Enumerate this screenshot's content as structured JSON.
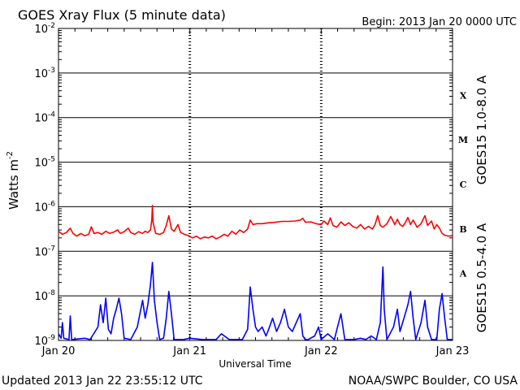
{
  "chart_data": {
    "type": "line",
    "title": "GOES Xray Flux (5 minute data)",
    "begin_label": "Begin:  2013 Jan 20 0000 UTC",
    "xlabel": "Universal Time",
    "ylabel": "Watts m",
    "ylabel_sup": "-2",
    "y_scale": "log",
    "ylim": [
      1e-09,
      0.01
    ],
    "xlim_days": [
      0,
      3
    ],
    "x_ticks": [
      {
        "day": 0,
        "label": "Jan 20"
      },
      {
        "day": 1,
        "label": "Jan 21"
      },
      {
        "day": 2,
        "label": "Jan 22"
      },
      {
        "day": 3,
        "label": "Jan 23"
      }
    ],
    "y_ticks": [
      {
        "exp": -2,
        "base": "10",
        "sup": "-2"
      },
      {
        "exp": -3,
        "base": "10",
        "sup": "-3"
      },
      {
        "exp": -4,
        "base": "10",
        "sup": "-4"
      },
      {
        "exp": -5,
        "base": "10",
        "sup": "-5"
      },
      {
        "exp": -6,
        "base": "10",
        "sup": "-6"
      },
      {
        "exp": -7,
        "base": "10",
        "sup": "-7"
      },
      {
        "exp": -8,
        "base": "10",
        "sup": "-8"
      },
      {
        "exp": -9,
        "base": "10",
        "sup": "-9"
      }
    ],
    "flare_classes": [
      {
        "label": "X",
        "exp": -3.5
      },
      {
        "label": "M",
        "exp": -4.5
      },
      {
        "label": "C",
        "exp": -5.5
      },
      {
        "label": "B",
        "exp": -6.5
      },
      {
        "label": "A",
        "exp": -7.5
      }
    ],
    "grid": true,
    "series": [
      {
        "name": "GOES15 1.0-8.0 A",
        "color": "#ff0000",
        "points": [
          [
            0.0,
            -6.55
          ],
          [
            0.03,
            -6.62
          ],
          [
            0.06,
            -6.58
          ],
          [
            0.09,
            -6.48
          ],
          [
            0.11,
            -6.6
          ],
          [
            0.14,
            -6.66
          ],
          [
            0.17,
            -6.6
          ],
          [
            0.2,
            -6.65
          ],
          [
            0.23,
            -6.62
          ],
          [
            0.25,
            -6.45
          ],
          [
            0.27,
            -6.6
          ],
          [
            0.3,
            -6.58
          ],
          [
            0.33,
            -6.62
          ],
          [
            0.36,
            -6.55
          ],
          [
            0.39,
            -6.6
          ],
          [
            0.42,
            -6.57
          ],
          [
            0.45,
            -6.52
          ],
          [
            0.47,
            -6.6
          ],
          [
            0.5,
            -6.56
          ],
          [
            0.53,
            -6.48
          ],
          [
            0.55,
            -6.58
          ],
          [
            0.58,
            -6.62
          ],
          [
            0.61,
            -6.56
          ],
          [
            0.64,
            -6.6
          ],
          [
            0.66,
            -6.55
          ],
          [
            0.68,
            -6.58
          ],
          [
            0.7,
            -6.52
          ],
          [
            0.71,
            -6.3
          ],
          [
            0.715,
            -5.97
          ],
          [
            0.72,
            -6.35
          ],
          [
            0.74,
            -6.6
          ],
          [
            0.77,
            -6.62
          ],
          [
            0.8,
            -6.58
          ],
          [
            0.82,
            -6.42
          ],
          [
            0.84,
            -6.2
          ],
          [
            0.86,
            -6.5
          ],
          [
            0.88,
            -6.55
          ],
          [
            0.91,
            -6.4
          ],
          [
            0.93,
            -6.58
          ],
          [
            0.96,
            -6.62
          ],
          [
            0.99,
            -6.65
          ],
          [
            1.02,
            -6.7
          ],
          [
            1.05,
            -6.66
          ],
          [
            1.08,
            -6.72
          ],
          [
            1.11,
            -6.68
          ],
          [
            1.14,
            -6.7
          ],
          [
            1.17,
            -6.66
          ],
          [
            1.2,
            -6.72
          ],
          [
            1.23,
            -6.68
          ],
          [
            1.26,
            -6.62
          ],
          [
            1.29,
            -6.66
          ],
          [
            1.32,
            -6.55
          ],
          [
            1.35,
            -6.62
          ],
          [
            1.38,
            -6.52
          ],
          [
            1.41,
            -6.58
          ],
          [
            1.44,
            -6.5
          ],
          [
            1.46,
            -6.3
          ],
          [
            1.48,
            -6.4
          ],
          [
            1.51,
            -6.38
          ],
          [
            1.55,
            -6.38
          ],
          [
            1.6,
            -6.36
          ],
          [
            1.65,
            -6.35
          ],
          [
            1.7,
            -6.33
          ],
          [
            1.75,
            -6.33
          ],
          [
            1.8,
            -6.32
          ],
          [
            1.84,
            -6.3
          ],
          [
            1.86,
            -6.26
          ],
          [
            1.88,
            -6.35
          ],
          [
            1.92,
            -6.34
          ],
          [
            1.96,
            -6.38
          ],
          [
            2.0,
            -6.4
          ],
          [
            2.02,
            -6.32
          ],
          [
            2.05,
            -6.4
          ],
          [
            2.07,
            -6.25
          ],
          [
            2.09,
            -6.42
          ],
          [
            2.12,
            -6.46
          ],
          [
            2.15,
            -6.34
          ],
          [
            2.18,
            -6.42
          ],
          [
            2.21,
            -6.36
          ],
          [
            2.24,
            -6.44
          ],
          [
            2.27,
            -6.48
          ],
          [
            2.3,
            -6.4
          ],
          [
            2.33,
            -6.5
          ],
          [
            2.36,
            -6.44
          ],
          [
            2.39,
            -6.5
          ],
          [
            2.41,
            -6.4
          ],
          [
            2.43,
            -6.2
          ],
          [
            2.45,
            -6.42
          ],
          [
            2.47,
            -6.46
          ],
          [
            2.5,
            -6.38
          ],
          [
            2.53,
            -6.22
          ],
          [
            2.56,
            -6.4
          ],
          [
            2.58,
            -6.28
          ],
          [
            2.6,
            -6.4
          ],
          [
            2.62,
            -6.44
          ],
          [
            2.64,
            -6.36
          ],
          [
            2.66,
            -6.24
          ],
          [
            2.68,
            -6.4
          ],
          [
            2.7,
            -6.3
          ],
          [
            2.73,
            -6.46
          ],
          [
            2.76,
            -6.38
          ],
          [
            2.79,
            -6.2
          ],
          [
            2.81,
            -6.42
          ],
          [
            2.84,
            -6.32
          ],
          [
            2.86,
            -6.5
          ],
          [
            2.88,
            -6.4
          ],
          [
            2.9,
            -6.48
          ],
          [
            2.92,
            -6.6
          ],
          [
            2.94,
            -6.64
          ],
          [
            2.97,
            -6.66
          ],
          [
            3.0,
            -6.65
          ]
        ]
      },
      {
        "name": "GOES15 0.5-4.0 A",
        "color": "#0000ff",
        "points": [
          [
            0.0,
            -8.85
          ],
          [
            0.02,
            -8.95
          ],
          [
            0.03,
            -8.6
          ],
          [
            0.04,
            -8.95
          ],
          [
            0.08,
            -8.98
          ],
          [
            0.09,
            -8.45
          ],
          [
            0.1,
            -8.98
          ],
          [
            0.2,
            -8.95
          ],
          [
            0.24,
            -8.98
          ],
          [
            0.3,
            -8.7
          ],
          [
            0.32,
            -8.2
          ],
          [
            0.34,
            -8.6
          ],
          [
            0.36,
            -8.05
          ],
          [
            0.38,
            -8.75
          ],
          [
            0.4,
            -8.85
          ],
          [
            0.42,
            -8.5
          ],
          [
            0.44,
            -8.3
          ],
          [
            0.46,
            -8.05
          ],
          [
            0.48,
            -8.4
          ],
          [
            0.5,
            -8.95
          ],
          [
            0.55,
            -8.98
          ],
          [
            0.6,
            -8.7
          ],
          [
            0.62,
            -8.4
          ],
          [
            0.64,
            -8.1
          ],
          [
            0.66,
            -8.5
          ],
          [
            0.68,
            -8.2
          ],
          [
            0.7,
            -7.75
          ],
          [
            0.715,
            -7.25
          ],
          [
            0.73,
            -8.1
          ],
          [
            0.75,
            -8.6
          ],
          [
            0.77,
            -8.98
          ],
          [
            0.8,
            -8.95
          ],
          [
            0.82,
            -8.5
          ],
          [
            0.84,
            -7.9
          ],
          [
            0.86,
            -8.4
          ],
          [
            0.88,
            -8.98
          ],
          [
            0.95,
            -8.98
          ],
          [
            1.0,
            -8.95
          ],
          [
            1.1,
            -8.98
          ],
          [
            1.2,
            -8.98
          ],
          [
            1.24,
            -8.85
          ],
          [
            1.3,
            -8.98
          ],
          [
            1.36,
            -8.98
          ],
          [
            1.4,
            -8.98
          ],
          [
            1.44,
            -8.75
          ],
          [
            1.46,
            -7.8
          ],
          [
            1.48,
            -8.3
          ],
          [
            1.5,
            -8.7
          ],
          [
            1.52,
            -8.8
          ],
          [
            1.55,
            -8.7
          ],
          [
            1.58,
            -8.9
          ],
          [
            1.6,
            -8.75
          ],
          [
            1.63,
            -8.5
          ],
          [
            1.66,
            -8.8
          ],
          [
            1.69,
            -8.6
          ],
          [
            1.72,
            -8.3
          ],
          [
            1.75,
            -8.7
          ],
          [
            1.78,
            -8.8
          ],
          [
            1.81,
            -8.6
          ],
          [
            1.84,
            -8.4
          ],
          [
            1.86,
            -8.9
          ],
          [
            1.88,
            -8.98
          ],
          [
            1.9,
            -8.98
          ],
          [
            1.95,
            -8.9
          ],
          [
            1.98,
            -8.7
          ],
          [
            2.0,
            -8.98
          ],
          [
            2.05,
            -8.85
          ],
          [
            2.1,
            -8.98
          ],
          [
            2.15,
            -8.4
          ],
          [
            2.18,
            -8.98
          ],
          [
            2.25,
            -8.98
          ],
          [
            2.3,
            -8.95
          ],
          [
            2.34,
            -8.98
          ],
          [
            2.38,
            -8.9
          ],
          [
            2.42,
            -8.98
          ],
          [
            2.45,
            -8.6
          ],
          [
            2.47,
            -7.35
          ],
          [
            2.48,
            -8.3
          ],
          [
            2.5,
            -8.98
          ],
          [
            2.55,
            -8.7
          ],
          [
            2.58,
            -8.3
          ],
          [
            2.6,
            -8.8
          ],
          [
            2.63,
            -8.5
          ],
          [
            2.66,
            -8.2
          ],
          [
            2.68,
            -7.9
          ],
          [
            2.7,
            -8.5
          ],
          [
            2.72,
            -8.98
          ],
          [
            2.76,
            -8.6
          ],
          [
            2.79,
            -8.1
          ],
          [
            2.81,
            -8.7
          ],
          [
            2.84,
            -8.98
          ],
          [
            2.88,
            -8.98
          ],
          [
            2.9,
            -8.3
          ],
          [
            2.92,
            -7.95
          ],
          [
            2.94,
            -8.5
          ],
          [
            2.96,
            -8.98
          ],
          [
            3.0,
            -8.98
          ]
        ]
      }
    ]
  },
  "footer": {
    "updated": "Updated 2013 Jan 22 23:55:12 UTC",
    "source": "NOAA/SWPC Boulder, CO USA"
  }
}
